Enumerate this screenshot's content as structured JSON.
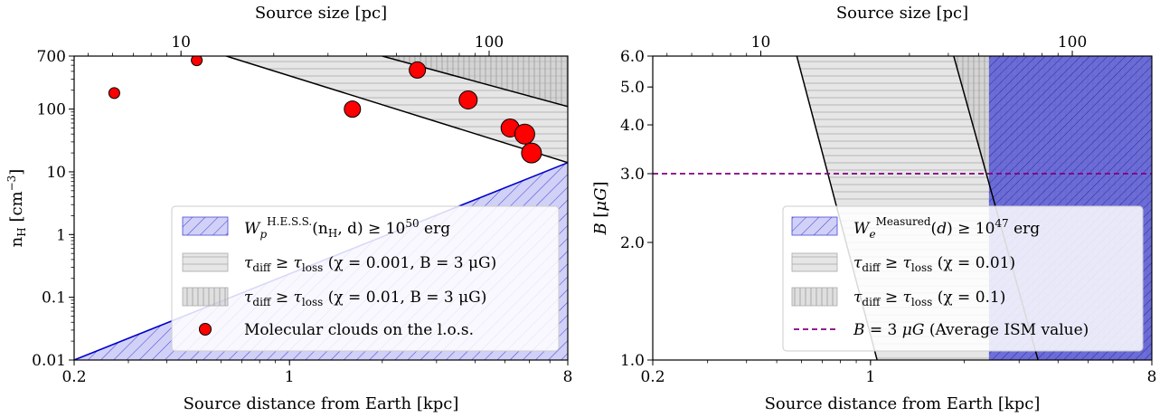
{
  "chart_data": [
    {
      "type": "scatter",
      "xlabel": "Source distance from Earth [kpc]",
      "x2label": "Source size [pc]",
      "ylabel": "n_H [cm^-3]",
      "xscale": "log",
      "yscale": "log",
      "xlim": [
        0.2,
        8
      ],
      "ylim": [
        0.01,
        700
      ],
      "x_ticks": [
        {
          "value": 0.2,
          "label": "0.2"
        },
        {
          "value": 1,
          "label": "1"
        },
        {
          "value": 8,
          "label": "8"
        }
      ],
      "x2_ticks": [
        {
          "value": 10,
          "label": "10"
        },
        {
          "value": 100,
          "label": "100"
        }
      ],
      "y_ticks": [
        {
          "value": 0.01,
          "label": "0.01"
        },
        {
          "value": 0.1,
          "label": "0.1"
        },
        {
          "value": 1,
          "label": "1"
        },
        {
          "value": 10,
          "label": "10"
        },
        {
          "value": 100,
          "label": "100"
        },
        {
          "value": 700,
          "label": "700"
        }
      ],
      "size_per_kpc": 22.5,
      "regions": [
        {
          "name": "W_p^{H.E.S.S.}(n_H, d) ≥ 10^50 erg",
          "kind": "blue-hatch",
          "boundary": [
            [
              0.2,
              0.01
            ],
            [
              8,
              14
            ]
          ]
        },
        {
          "name": "τ_diff ≥ τ_loss (χ = 0.001, B = 3 μG)",
          "kind": "gray-horizontal",
          "boundary": [
            [
              0.2,
              4000
            ],
            [
              8,
              14
            ]
          ]
        },
        {
          "name": "τ_diff ≥ τ_loss (χ = 0.01, B = 3 μG)",
          "kind": "gray-vertical",
          "boundary": [
            [
              2.0,
              700
            ],
            [
              8,
              110
            ]
          ]
        }
      ],
      "points_label": "Molecular clouds on the l.o.s.",
      "points": [
        {
          "x": 0.27,
          "y": 180,
          "size": 6
        },
        {
          "x": 0.5,
          "y": 600,
          "size": 6
        },
        {
          "x": 1.6,
          "y": 100,
          "size": 9
        },
        {
          "x": 2.6,
          "y": 420,
          "size": 9
        },
        {
          "x": 3.8,
          "y": 140,
          "size": 10
        },
        {
          "x": 5.2,
          "y": 50,
          "size": 10
        },
        {
          "x": 5.8,
          "y": 40,
          "size": 11
        },
        {
          "x": 6.1,
          "y": 20,
          "size": 11
        }
      ],
      "legend_position": "lower-right",
      "legend": [
        {
          "kind": "blue-hatch",
          "label": "W_p^{H.E.S.S.}(n_H, d) ≥ 10^50 erg"
        },
        {
          "kind": "gray-horizontal",
          "label": "τ_diff ≥ τ_loss (χ = 0.001, B = 3 μG)"
        },
        {
          "kind": "gray-vertical",
          "label": "τ_diff ≥ τ_loss (χ = 0.01, B = 3 μG)"
        },
        {
          "kind": "marker",
          "label": "Molecular clouds on the l.o.s."
        }
      ]
    },
    {
      "type": "area",
      "xlabel": "Source distance from Earth [kpc]",
      "x2label": "Source size [pc]",
      "ylabel": "B [μG]",
      "xscale": "log",
      "yscale": "log",
      "xlim": [
        0.2,
        8
      ],
      "ylim": [
        1,
        6
      ],
      "x_ticks": [
        {
          "value": 0.2,
          "label": "0.2"
        },
        {
          "value": 1,
          "label": "1"
        },
        {
          "value": 8,
          "label": "8"
        }
      ],
      "x2_ticks": [
        {
          "value": 10,
          "label": "10"
        },
        {
          "value": 100,
          "label": "100"
        }
      ],
      "y_ticks": [
        {
          "value": 1,
          "label": "1.0"
        },
        {
          "value": 2,
          "label": "2.0"
        },
        {
          "value": 3,
          "label": "3.0"
        },
        {
          "value": 4,
          "label": "4.0"
        },
        {
          "value": 5,
          "label": "5.0"
        },
        {
          "value": 6,
          "label": "6.0"
        }
      ],
      "size_per_kpc": 22.5,
      "regions": [
        {
          "name": "W_e^{Measured}(d) ≥ 10^47 erg",
          "kind": "blue-hatch",
          "x_min": 2.4
        },
        {
          "name": "τ_diff ≥ τ_loss (χ = 0.01)",
          "kind": "gray-horizontal",
          "boundary": [
            [
              0.58,
              6
            ],
            [
              1.05,
              1
            ]
          ]
        },
        {
          "name": "τ_diff ≥ τ_loss (χ = 0.1)",
          "kind": "gray-vertical",
          "boundary": [
            [
              1.85,
              6
            ],
            [
              3.45,
              1
            ]
          ]
        }
      ],
      "hline": {
        "y": 3,
        "label": "B = 3 μG (Average ISM value)",
        "color": "#800080"
      },
      "legend_position": "lower-right",
      "legend": [
        {
          "kind": "blue-hatch",
          "label": "W_e^{Measured}(d) ≥ 10^47 erg"
        },
        {
          "kind": "gray-horizontal",
          "label": "τ_diff ≥ τ_loss (χ = 0.01)"
        },
        {
          "kind": "gray-vertical",
          "label": "τ_diff ≥ τ_loss (χ = 0.1)"
        },
        {
          "kind": "dashed",
          "label": "B = 3 μG (Average ISM value)"
        }
      ]
    }
  ],
  "colors": {
    "blue_fill": "#6a6ae8",
    "blue_line": "#0000cc",
    "gray_fill": "#d2d2d2",
    "marker_fill": "#ff0000",
    "hline": "#800080"
  }
}
